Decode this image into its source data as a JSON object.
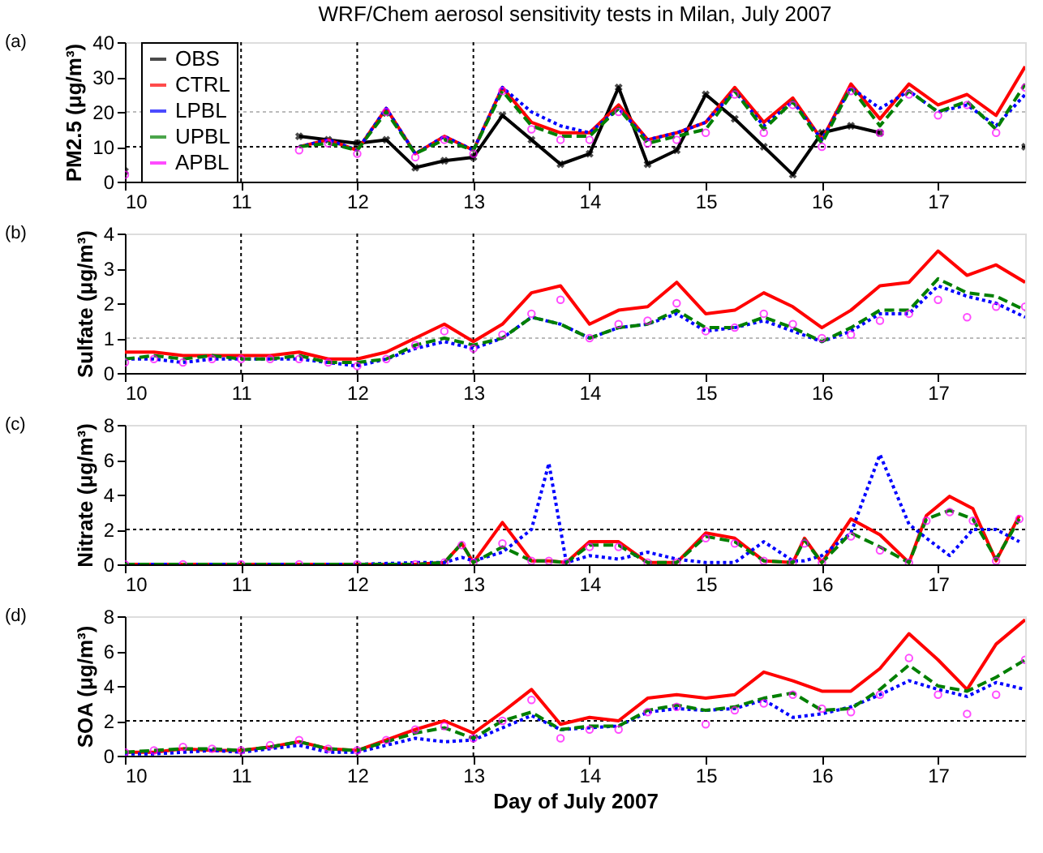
{
  "chart_data": [
    {
      "type": "line",
      "title": "WRF/Chem aerosol sensitivity tests in Milan, July 2007",
      "annotations": [
        "(a)"
      ],
      "ylabel": "PM2.5 (μg/m³)",
      "legend": "top left",
      "x": [
        10,
        10.25,
        10.5,
        10.75,
        11,
        11.25,
        11.5,
        11.75,
        12,
        12.25,
        12.5,
        12.75,
        13,
        13.25,
        13.5,
        13.75,
        14,
        14.25,
        14.5,
        14.75,
        15,
        15.25,
        15.5,
        15.75,
        16,
        16.25,
        16.5,
        16.75,
        17,
        17.25,
        17.5,
        17.75
      ],
      "xlim": [
        10,
        17.75
      ],
      "xticks": [
        10,
        11,
        12,
        13,
        14,
        15,
        16,
        17
      ],
      "ylim": [
        0,
        40
      ],
      "yticks": [
        0,
        10,
        20,
        30,
        40
      ],
      "ref_lines": [
        {
          "axis": "y",
          "value": 10,
          "color": "#000000",
          "line_style": "dotted"
        },
        {
          "axis": "y",
          "value": 20,
          "color": "#bbbbbb",
          "line_style": "dotted"
        },
        {
          "axis": "x",
          "value": 11,
          "color": "#000000",
          "line_style": "dotted"
        },
        {
          "axis": "x",
          "value": 12,
          "color": "#000000",
          "line_style": "dotted"
        },
        {
          "axis": "x",
          "value": 13,
          "color": "#000000",
          "line_style": "dotted"
        }
      ],
      "series": [
        {
          "name": "OBS",
          "color": "#000000",
          "line_style": "solid",
          "marker": "cross",
          "values": [
            3,
            null,
            null,
            null,
            null,
            null,
            13,
            12,
            11,
            12,
            4,
            6,
            7,
            19,
            12,
            5,
            8,
            27,
            5,
            9,
            25,
            18,
            10,
            2,
            14,
            16,
            14,
            null,
            null,
            null,
            null,
            10
          ]
        },
        {
          "name": "CTRL",
          "color": "#ff0000",
          "line_style": "solid",
          "values": [
            null,
            null,
            null,
            null,
            null,
            null,
            10,
            12,
            9,
            21,
            8,
            13,
            9,
            27,
            17,
            14,
            14,
            22,
            12,
            14,
            17,
            27,
            17,
            24,
            12,
            28,
            18,
            28,
            22,
            25,
            19,
            33
          ]
        },
        {
          "name": "LPBL",
          "color": "#0000ff",
          "line_style": "dotted",
          "values": [
            null,
            null,
            null,
            null,
            null,
            null,
            10,
            12,
            9,
            21,
            8,
            13,
            9,
            27,
            20,
            16,
            14,
            21,
            12,
            14,
            17,
            26,
            16,
            23,
            12,
            27,
            21,
            26,
            20,
            22,
            16,
            25
          ]
        },
        {
          "name": "UPBL",
          "color": "#007f00",
          "line_style": "dashed",
          "values": [
            null,
            null,
            null,
            null,
            null,
            null,
            10,
            11,
            9,
            20,
            8,
            12,
            9,
            26,
            16,
            13,
            13,
            21,
            11,
            13,
            15,
            26,
            15,
            23,
            11,
            27,
            16,
            26,
            20,
            23,
            15,
            28
          ]
        },
        {
          "name": "APBL",
          "type": "scatter",
          "color": "#ff00ff",
          "marker": "circle",
          "values": [
            2,
            null,
            null,
            null,
            null,
            null,
            9,
            11,
            8,
            20,
            7,
            12,
            8,
            26,
            15,
            12,
            12,
            20,
            11,
            12,
            14,
            25,
            14,
            22,
            10,
            26,
            14,
            25,
            19,
            22,
            14,
            27
          ]
        }
      ]
    },
    {
      "type": "line",
      "annotations": [
        "(b)"
      ],
      "ylabel": "Sulfate (μg/m³)",
      "x": [
        10,
        10.25,
        10.5,
        10.75,
        11,
        11.25,
        11.5,
        11.75,
        12,
        12.25,
        12.5,
        12.75,
        13,
        13.25,
        13.5,
        13.75,
        14,
        14.25,
        14.5,
        14.75,
        15,
        15.25,
        15.5,
        15.75,
        16,
        16.25,
        16.5,
        16.75,
        17,
        17.25,
        17.5,
        17.75
      ],
      "xlim": [
        10,
        17.75
      ],
      "xticks": [
        10,
        11,
        12,
        13,
        14,
        15,
        16,
        17
      ],
      "ylim": [
        0,
        4
      ],
      "yticks": [
        0,
        1,
        2,
        3,
        4
      ],
      "ref_lines": [
        {
          "axis": "y",
          "value": 1,
          "color": "#bbbbbb",
          "line_style": "dotted"
        },
        {
          "axis": "x",
          "value": 11,
          "color": "#000000",
          "line_style": "dotted"
        },
        {
          "axis": "x",
          "value": 12,
          "color": "#000000",
          "line_style": "dotted"
        },
        {
          "axis": "x",
          "value": 13,
          "color": "#000000",
          "line_style": "dotted"
        }
      ],
      "series": [
        {
          "type": "line",
          "color": "#ff0000",
          "line_style": "solid",
          "values": [
            0.6,
            0.6,
            0.5,
            0.5,
            0.5,
            0.5,
            0.6,
            0.4,
            0.4,
            0.6,
            1.0,
            1.4,
            0.9,
            1.4,
            2.3,
            2.5,
            1.4,
            1.8,
            1.9,
            2.6,
            1.7,
            1.8,
            2.3,
            1.9,
            1.3,
            1.8,
            2.5,
            2.6,
            3.5,
            2.8,
            3.1,
            2.6
          ]
        },
        {
          "type": "line",
          "color": "#0000ff",
          "line_style": "dotted",
          "values": [
            0.4,
            0.4,
            0.3,
            0.4,
            0.4,
            0.4,
            0.4,
            0.3,
            0.2,
            0.4,
            0.7,
            0.9,
            0.7,
            1.0,
            1.6,
            1.4,
            1.0,
            1.3,
            1.4,
            1.7,
            1.2,
            1.3,
            1.5,
            1.2,
            0.9,
            1.2,
            1.7,
            1.7,
            2.5,
            2.2,
            2.0,
            1.6
          ]
        },
        {
          "type": "line",
          "color": "#007f00",
          "line_style": "dashed",
          "values": [
            0.4,
            0.5,
            0.4,
            0.5,
            0.4,
            0.4,
            0.5,
            0.3,
            0.3,
            0.4,
            0.8,
            1.0,
            0.8,
            1.0,
            1.6,
            1.4,
            1.0,
            1.3,
            1.4,
            1.8,
            1.3,
            1.3,
            1.6,
            1.3,
            0.9,
            1.3,
            1.8,
            1.8,
            2.7,
            2.3,
            2.2,
            1.8
          ]
        },
        {
          "type": "scatter",
          "color": "#ff00ff",
          "marker": "circle",
          "values": [
            0.3,
            0.4,
            0.3,
            0.4,
            0.4,
            0.4,
            0.4,
            0.3,
            0.2,
            0.4,
            0.8,
            1.2,
            0.7,
            1.1,
            1.7,
            2.1,
            1.0,
            1.4,
            1.5,
            2.0,
            1.2,
            1.3,
            1.7,
            1.4,
            1.0,
            1.1,
            1.5,
            1.7,
            2.1,
            1.6,
            1.9,
            1.9
          ]
        }
      ]
    },
    {
      "type": "line",
      "annotations": [
        "(c)"
      ],
      "ylabel": "Nitrate (μg/m³)",
      "x": [
        10,
        10.5,
        11,
        11.5,
        12,
        12.5,
        12.75,
        12.9,
        13,
        13.25,
        13.5,
        13.65,
        13.8,
        14,
        14.25,
        14.5,
        14.75,
        15,
        15.25,
        15.5,
        15.75,
        15.85,
        16,
        16.25,
        16.5,
        16.75,
        16.9,
        17.1,
        17.3,
        17.5,
        17.7
      ],
      "xlim": [
        10,
        17.75
      ],
      "xticks": [
        10,
        11,
        12,
        13,
        14,
        15,
        16,
        17
      ],
      "ylim": [
        0,
        8
      ],
      "yticks": [
        0,
        2,
        4,
        6,
        8
      ],
      "ref_lines": [
        {
          "axis": "y",
          "value": 2,
          "color": "#000000",
          "line_style": "dotted"
        },
        {
          "axis": "x",
          "value": 11,
          "color": "#000000",
          "line_style": "dotted"
        },
        {
          "axis": "x",
          "value": 12,
          "color": "#000000",
          "line_style": "dotted"
        },
        {
          "axis": "x",
          "value": 13,
          "color": "#000000",
          "line_style": "dotted"
        }
      ],
      "series": [
        {
          "type": "line",
          "color": "#ff0000",
          "line_style": "solid",
          "values": [
            0,
            0,
            0,
            0,
            0,
            0,
            0.1,
            1.2,
            0.1,
            2.4,
            0.2,
            0.2,
            0.1,
            1.3,
            1.3,
            0.1,
            0.1,
            1.8,
            1.5,
            0.2,
            0.1,
            1.5,
            0.1,
            2.6,
            1.7,
            0.1,
            2.8,
            3.9,
            3.2,
            0.2,
            2.8
          ]
        },
        {
          "type": "line",
          "color": "#0000ff",
          "line_style": "dotted",
          "values": [
            0,
            0,
            0,
            0,
            0,
            0.1,
            0.1,
            0.4,
            0.2,
            0.7,
            2.0,
            5.8,
            0.1,
            0.5,
            0.3,
            0.7,
            0.3,
            0.1,
            0.1,
            1.3,
            0.2,
            0.2,
            0.5,
            1.8,
            6.3,
            2.3,
            1.5,
            0.5,
            2.0,
            2.0,
            1.3
          ]
        },
        {
          "type": "line",
          "color": "#007f00",
          "line_style": "dashed",
          "values": [
            0,
            0,
            0,
            0,
            0,
            0,
            0.1,
            1.2,
            0.1,
            1.0,
            0.2,
            0.2,
            0.1,
            1.1,
            1.1,
            0.1,
            0.1,
            1.6,
            1.3,
            0.2,
            0.1,
            1.4,
            0.1,
            1.8,
            1.0,
            0.1,
            2.6,
            3.1,
            2.6,
            0.3,
            2.6
          ]
        },
        {
          "type": "scatter",
          "color": "#ff00ff",
          "marker": "circle",
          "values": [
            0,
            0,
            0,
            0,
            0,
            0,
            0.1,
            1.1,
            0.1,
            1.2,
            0.2,
            0.2,
            0.1,
            1.0,
            1.0,
            0.1,
            0.1,
            1.5,
            1.2,
            0.2,
            0.1,
            1.2,
            0.1,
            1.6,
            0.8,
            0.1,
            2.5,
            3.0,
            2.5,
            0.2,
            2.6
          ]
        }
      ]
    },
    {
      "type": "line",
      "annotations": [
        "(d)"
      ],
      "ylabel": "SOA (μg/m³)",
      "xlabel": "Day of July 2007",
      "x": [
        10,
        10.25,
        10.5,
        10.75,
        11,
        11.25,
        11.5,
        11.75,
        12,
        12.25,
        12.5,
        12.75,
        13,
        13.25,
        13.5,
        13.75,
        14,
        14.25,
        14.5,
        14.75,
        15,
        15.25,
        15.5,
        15.75,
        16,
        16.25,
        16.5,
        16.75,
        17,
        17.25,
        17.5,
        17.75
      ],
      "xlim": [
        10,
        17.75
      ],
      "xticks": [
        10,
        11,
        12,
        13,
        14,
        15,
        16,
        17
      ],
      "ylim": [
        0,
        8
      ],
      "yticks": [
        0,
        2,
        4,
        6,
        8
      ],
      "ref_lines": [
        {
          "axis": "y",
          "value": 2,
          "color": "#000000",
          "line_style": "dotted"
        },
        {
          "axis": "x",
          "value": 11,
          "color": "#000000",
          "line_style": "dotted"
        },
        {
          "axis": "x",
          "value": 12,
          "color": "#000000",
          "line_style": "dotted"
        },
        {
          "axis": "x",
          "value": 13,
          "color": "#000000",
          "line_style": "dotted"
        }
      ],
      "series": [
        {
          "type": "line",
          "color": "#ff0000",
          "line_style": "solid",
          "values": [
            0.2,
            0.2,
            0.4,
            0.3,
            0.3,
            0.5,
            0.8,
            0.4,
            0.3,
            0.9,
            1.5,
            2.0,
            1.3,
            2.5,
            3.8,
            1.8,
            2.2,
            2.0,
            3.3,
            3.5,
            3.3,
            3.5,
            4.8,
            4.3,
            3.7,
            3.7,
            5.0,
            7.0,
            5.5,
            3.8,
            6.4,
            7.8
          ]
        },
        {
          "type": "line",
          "color": "#0000ff",
          "line_style": "dotted",
          "values": [
            0.1,
            0.1,
            0.2,
            0.3,
            0.2,
            0.4,
            0.6,
            0.2,
            0.2,
            0.6,
            1.0,
            0.8,
            0.9,
            1.6,
            2.3,
            1.5,
            1.6,
            1.7,
            2.5,
            2.7,
            2.6,
            2.7,
            3.2,
            2.2,
            2.4,
            2.8,
            3.5,
            4.3,
            3.8,
            3.4,
            4.2,
            3.8
          ]
        },
        {
          "type": "line",
          "color": "#007f00",
          "line_style": "dashed",
          "values": [
            0.2,
            0.3,
            0.4,
            0.4,
            0.3,
            0.5,
            0.8,
            0.4,
            0.3,
            0.8,
            1.3,
            1.6,
            1.0,
            2.0,
            2.5,
            1.5,
            1.7,
            1.7,
            2.6,
            2.9,
            2.6,
            2.8,
            3.3,
            3.6,
            2.6,
            2.7,
            3.8,
            5.2,
            4.0,
            3.7,
            4.5,
            5.5
          ]
        },
        {
          "type": "scatter",
          "color": "#ff00ff",
          "marker": "circle",
          "values": [
            0.2,
            0.3,
            0.5,
            0.4,
            0.3,
            0.6,
            0.9,
            0.4,
            0.3,
            0.9,
            1.5,
            1.7,
            1.0,
            2.0,
            3.2,
            1.0,
            1.5,
            1.5,
            2.5,
            2.8,
            1.8,
            2.6,
            3.0,
            3.5,
            2.7,
            2.5,
            3.5,
            5.6,
            3.5,
            2.4,
            3.5,
            5.5
          ]
        }
      ]
    }
  ]
}
